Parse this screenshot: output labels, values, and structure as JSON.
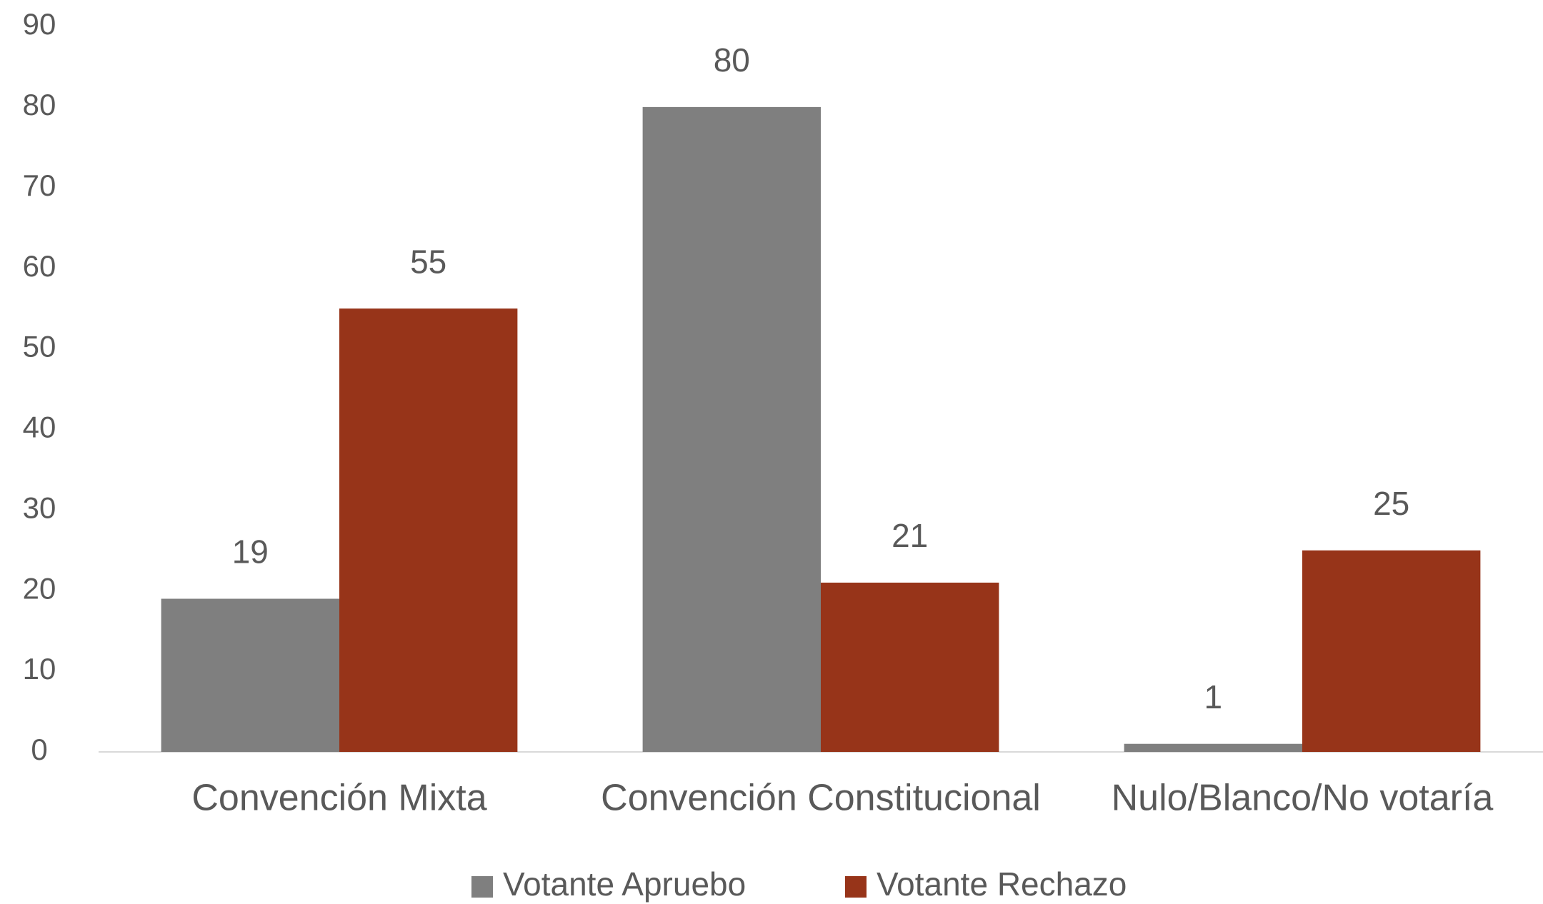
{
  "chart_data": {
    "type": "bar",
    "categories": [
      "Convención Mixta",
      "Convención Constitucional",
      "Nulo/Blanco/No votaría"
    ],
    "series": [
      {
        "name": "Votante Apruebo",
        "color": "#7f7f7f",
        "values": [
          19,
          80,
          1
        ]
      },
      {
        "name": "Votante Rechazo",
        "color": "#973419",
        "values": [
          55,
          21,
          25
        ]
      }
    ],
    "ylim": [
      0,
      90
    ],
    "yticks": [
      0,
      10,
      20,
      30,
      40,
      50,
      60,
      70,
      80,
      90
    ],
    "grid": false,
    "legend": "bottom"
  }
}
